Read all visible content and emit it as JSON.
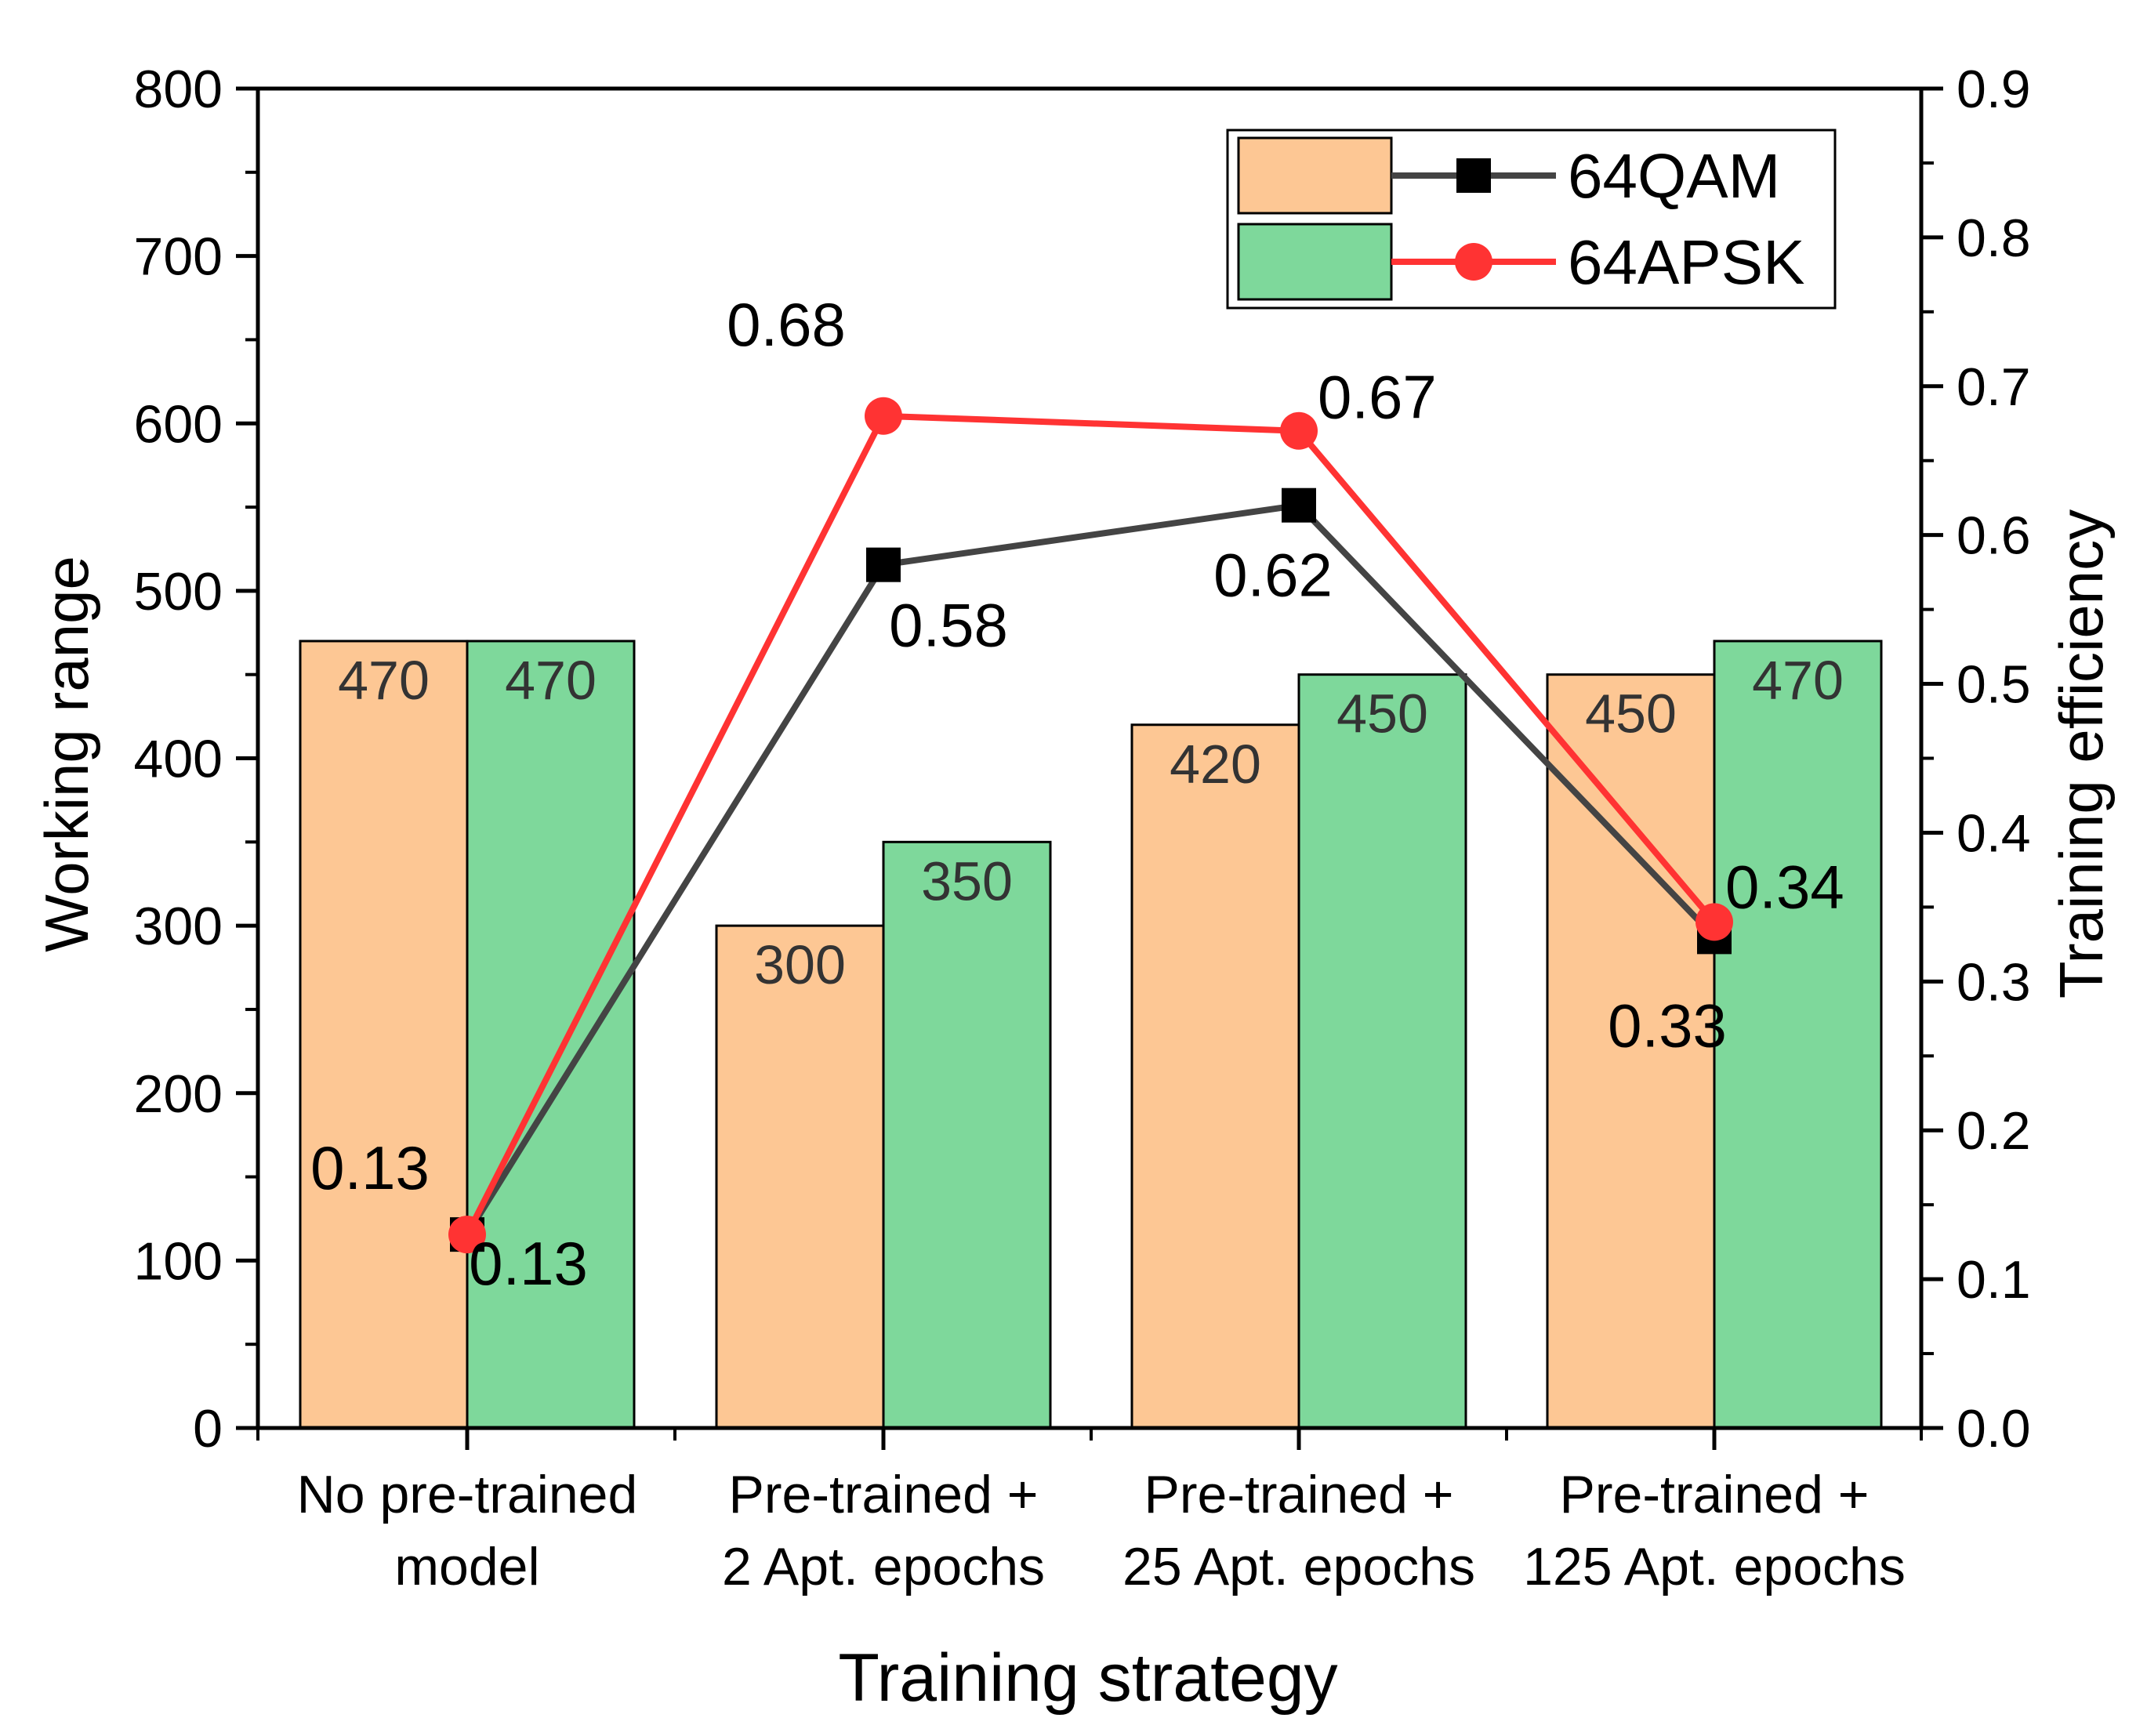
{
  "chart_data": {
    "type": "bar",
    "xlabel": "Training strategy",
    "ylabel": "Working range",
    "y2label": "Training efficiency",
    "categories": [
      [
        "No pre-trained",
        "model"
      ],
      [
        "Pre-trained +",
        "2 Apt. epochs"
      ],
      [
        "Pre-trained +",
        "25 Apt. epochs"
      ],
      [
        "Pre-trained +",
        "125 Apt. epochs"
      ]
    ],
    "ylim": [
      0,
      800
    ],
    "yticks": [
      0,
      100,
      200,
      300,
      400,
      500,
      600,
      700,
      800
    ],
    "y2lim": [
      0.0,
      0.9
    ],
    "y2ticks": [
      "0.0",
      "0.1",
      "0.2",
      "0.3",
      "0.4",
      "0.5",
      "0.6",
      "0.7",
      "0.8",
      "0.9"
    ],
    "bar_series": [
      {
        "key": "qam",
        "values": [
          470,
          300,
          420,
          450
        ],
        "color": "#FDC794"
      },
      {
        "key": "apsk",
        "values": [
          470,
          350,
          450,
          470
        ],
        "color": "#7ED89B"
      }
    ],
    "line_series": [
      {
        "name": "64QAM",
        "values": [
          0.13,
          0.58,
          0.62,
          0.33
        ],
        "labels": [
          "0.13",
          "0.58",
          "0.62",
          "0.33"
        ],
        "color": "#444444",
        "marker": "square"
      },
      {
        "name": "64APSK",
        "values": [
          0.13,
          0.68,
          0.67,
          0.34
        ],
        "labels": [
          "0.13",
          "0.68",
          "0.67",
          "0.34"
        ],
        "color": "#FF3333",
        "marker": "circle"
      }
    ],
    "legend_position": "top-right",
    "grid": false
  }
}
